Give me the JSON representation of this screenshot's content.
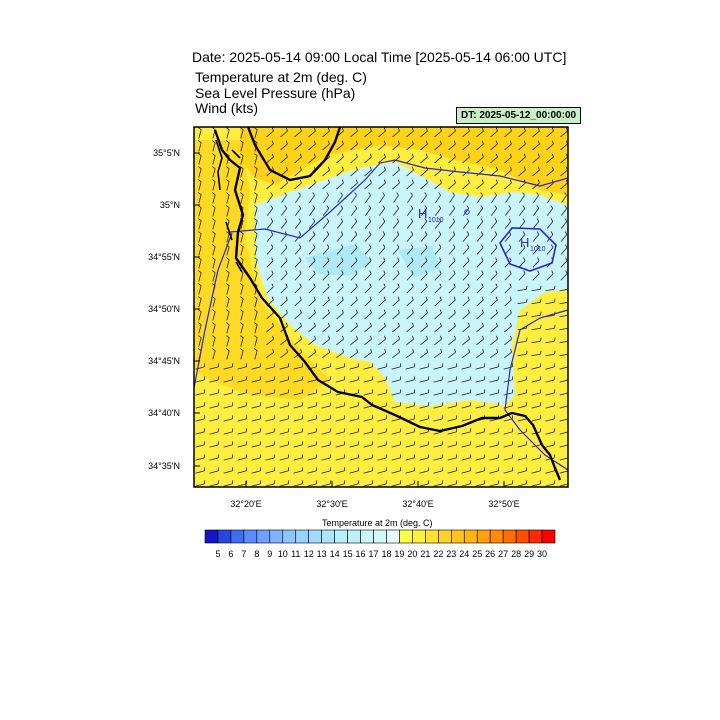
{
  "header": {
    "title": "Date: 2025-05-14  09:00 Local Time [2025-05-14  06:00 UTC]",
    "fields": [
      "Temperature at 2m   (deg. C)",
      "Sea Level Pressure   (hPa)",
      "Wind   (kts)"
    ],
    "dt_badge": "DT: 2025-05-12_00:00:00"
  },
  "map": {
    "lat_labels": [
      "35°5'N",
      "35°N",
      "34°55'N",
      "34°50'N",
      "34°45'N",
      "34°40'N",
      "34°35'N"
    ],
    "lon_labels": [
      "32°20'E",
      "32°30'E",
      "32°40'E",
      "32°50'E"
    ],
    "pressure_highs": [
      {
        "label": "H",
        "value": "1010"
      },
      {
        "label": "H",
        "value": "1010"
      }
    ],
    "colors": {
      "warm": "#ffee40",
      "warm_dark": "#ffd21a",
      "cool": "#c8f4fa",
      "cool_mid": "#aeeaf6",
      "isobar": "#2828c8",
      "coast": "#000000"
    }
  },
  "colorbar": {
    "title": "Temperature at 2m  (deg. C)",
    "labels": [
      "5",
      "6",
      "7",
      "8",
      "9",
      "10",
      "11",
      "12",
      "13",
      "14",
      "15",
      "16",
      "17",
      "18",
      "19",
      "20",
      "21",
      "22",
      "23",
      "24",
      "25",
      "26",
      "27",
      "28",
      "29",
      "30"
    ],
    "colors": [
      "#1414c8",
      "#2846dc",
      "#3c6ef0",
      "#5a8cff",
      "#6ea0ff",
      "#82b4ff",
      "#8cc8ff",
      "#96d2ff",
      "#a0dcff",
      "#aae6ff",
      "#b4f0ff",
      "#bef0fa",
      "#c8f4fa",
      "#d2f8fa",
      "#e6fcfc",
      "#ffff46",
      "#fff03c",
      "#ffe132",
      "#ffd228",
      "#ffc31e",
      "#ffb414",
      "#ffa00a",
      "#ff8c00",
      "#ff6e00",
      "#ff5000",
      "#ff2800",
      "#ff0000"
    ]
  }
}
